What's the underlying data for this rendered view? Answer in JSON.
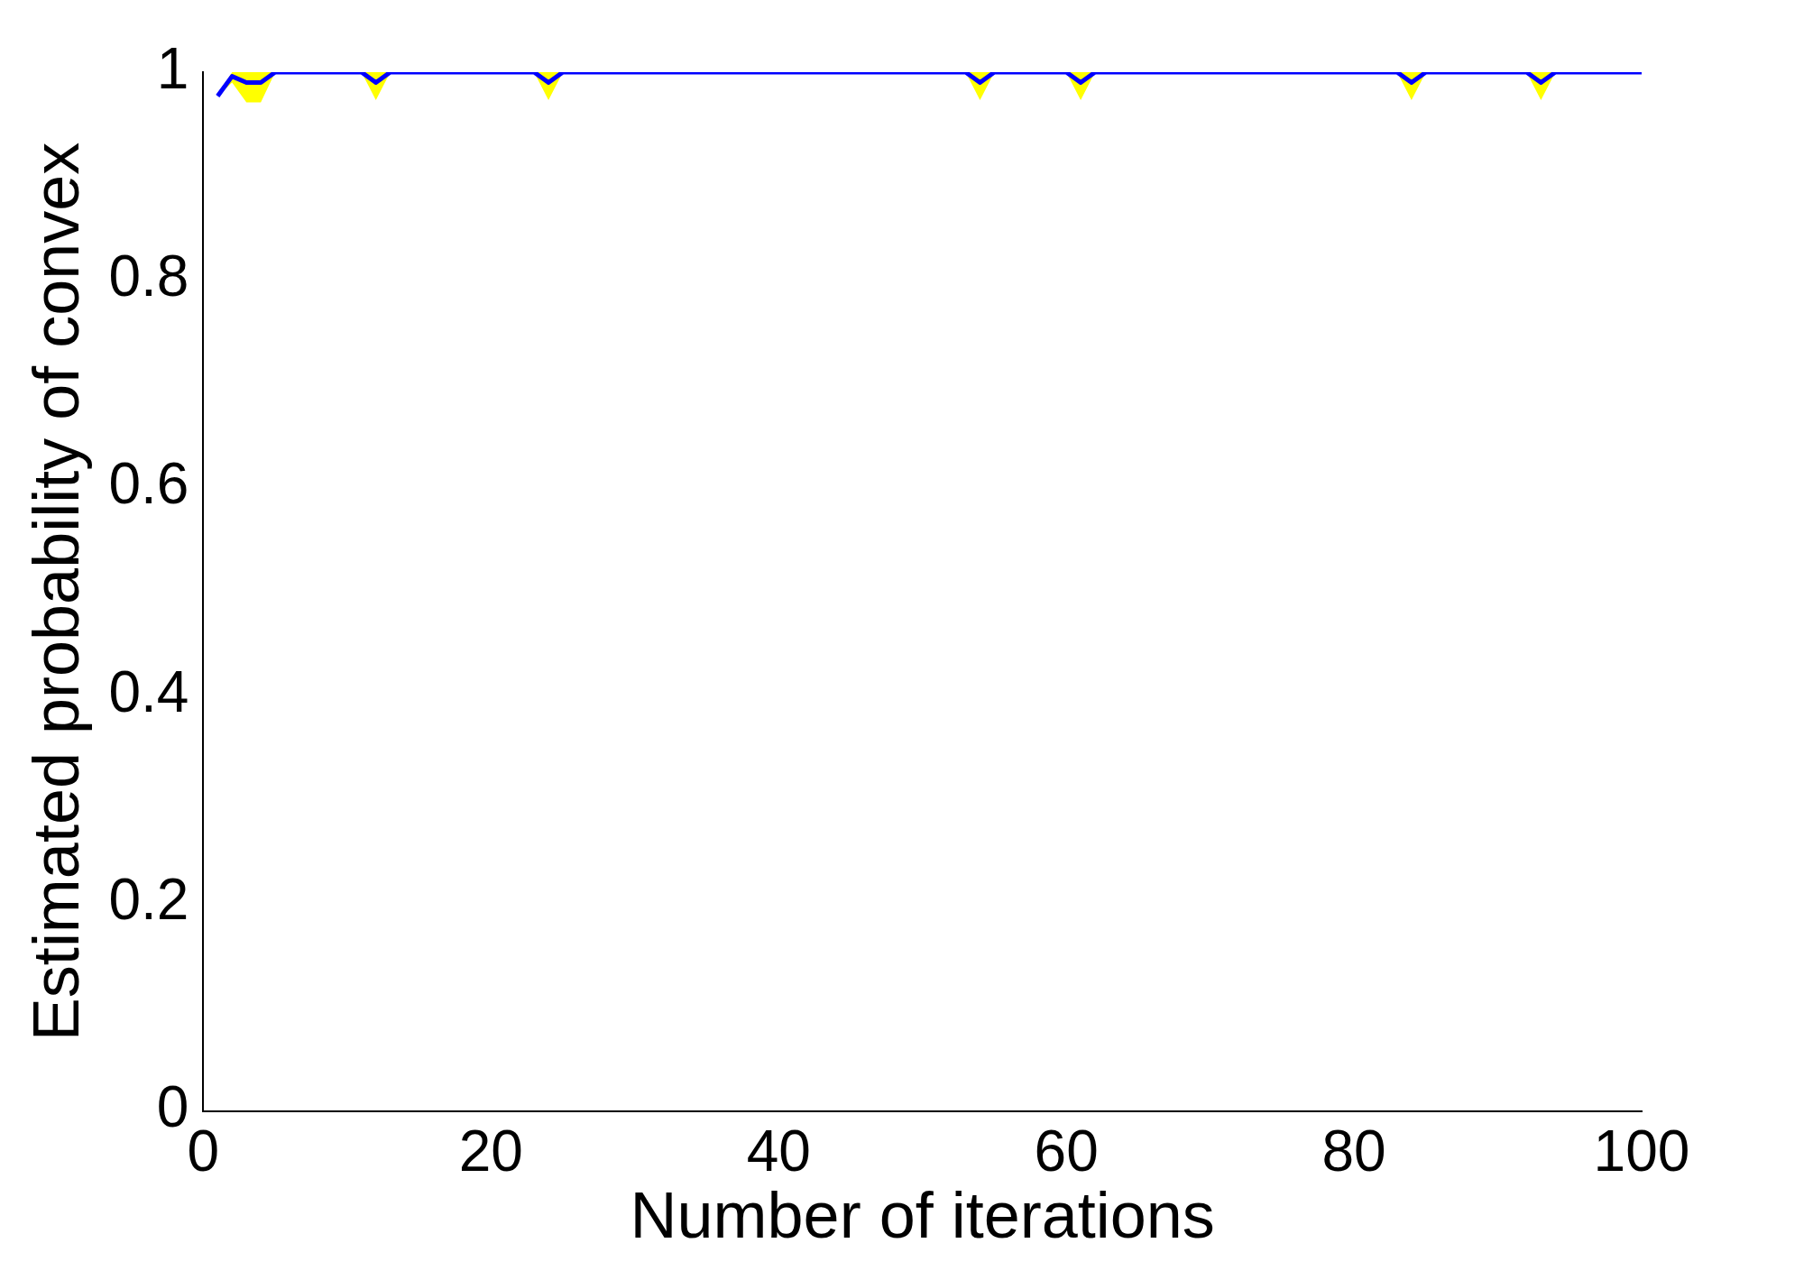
{
  "chart_data": {
    "type": "line",
    "xlabel": "Number of iterations",
    "ylabel": "Estimated probability of convex",
    "xlim": [
      0,
      100
    ],
    "xticks": [
      0,
      20,
      40,
      60,
      80,
      100
    ],
    "ylim": [
      0,
      1
    ],
    "yticks": [
      0,
      0.2,
      0.4,
      0.6,
      0.8,
      1
    ],
    "grid": false,
    "legend": false,
    "marker": "none",
    "line_style": "solid",
    "series": [
      {
        "color": "#0000ff",
        "x": [
          1,
          2,
          3,
          4,
          5,
          11,
          12,
          13,
          23,
          24,
          25,
          53,
          54,
          55,
          60,
          61,
          62,
          83,
          84,
          85,
          92,
          93,
          94,
          100
        ],
        "values": [
          0.977,
          0.996,
          0.99,
          0.99,
          1,
          1,
          0.99,
          1,
          1,
          0.99,
          1,
          1,
          0.99,
          1,
          1,
          0.99,
          1,
          1,
          0.99,
          1,
          1,
          0.99,
          1,
          1
        ],
        "lower": [
          0.977,
          0.99,
          0.971,
          0.971,
          1,
          1,
          0.973,
          1,
          1,
          0.973,
          1,
          1,
          0.973,
          1,
          1,
          0.973,
          1,
          1,
          0.973,
          1,
          1,
          0.973,
          1,
          1
        ],
        "upper": [
          0.977,
          1,
          1,
          1,
          1,
          1,
          1,
          1,
          1,
          1,
          1,
          1,
          1,
          1,
          1,
          1,
          1,
          1,
          1,
          1,
          1,
          1,
          1,
          1
        ]
      }
    ]
  }
}
